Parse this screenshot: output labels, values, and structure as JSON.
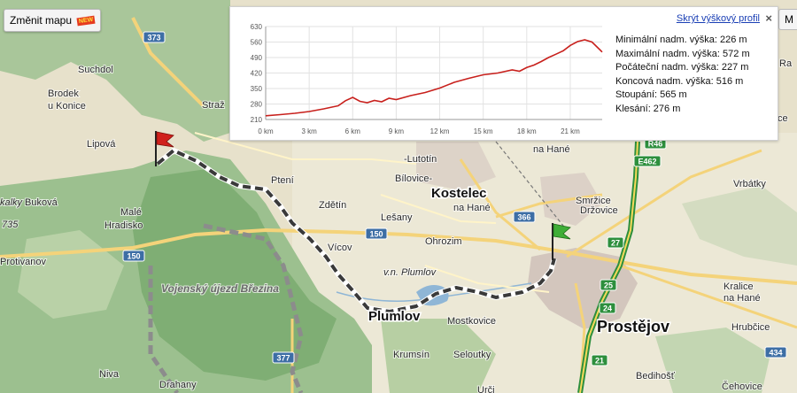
{
  "controls": {
    "change_map_label": "Změnit mapu",
    "change_map_badge": "NEW",
    "right_button_label": "M"
  },
  "profile": {
    "hide_label": "Skrýt výškový profil",
    "close_label": "×",
    "stats": [
      "Minimální nadm. výška: 226 m",
      "Maximální nadm. výška: 572 m",
      "Počáteční nadm. výška: 227 m",
      "Koncová nadm. výška: 516 m",
      "Stoupání: 565 m",
      "Klesání: 276 m"
    ]
  },
  "chart_data": {
    "type": "line",
    "title": "",
    "xlabel": "",
    "ylabel": "",
    "x_ticks": [
      "0 km",
      "3 km",
      "6 km",
      "9 km",
      "12 km",
      "15 km",
      "18 km",
      "21 km"
    ],
    "y_ticks": [
      210,
      280,
      350,
      420,
      490,
      560,
      630
    ],
    "xlim": [
      0,
      23.2
    ],
    "ylim": [
      210,
      630
    ],
    "grid": true,
    "color": "#c8201c",
    "series": [
      {
        "x": [
          0,
          1,
          2,
          3,
          4,
          5,
          5.5,
          6,
          6.5,
          7,
          7.5,
          8,
          8.5,
          9,
          10,
          11,
          12,
          13,
          14,
          15,
          16,
          17,
          17.5,
          18,
          18.5,
          19,
          19.5,
          20,
          20.5,
          21,
          21.5,
          22,
          22.5,
          23,
          23.2
        ],
        "values": [
          227,
          232,
          238,
          246,
          258,
          272,
          295,
          310,
          292,
          286,
          296,
          290,
          306,
          300,
          318,
          332,
          352,
          378,
          396,
          412,
          420,
          434,
          428,
          445,
          456,
          472,
          490,
          505,
          520,
          545,
          562,
          570,
          560,
          528,
          515
        ]
      }
    ]
  },
  "map": {
    "places": [
      {
        "name": "Suchdol"
      },
      {
        "name": "Brodek"
      },
      {
        "name": "u Konice"
      },
      {
        "name": "Straž"
      },
      {
        "name": "Lipová"
      },
      {
        "name": "Buková"
      },
      {
        "name": "Malé"
      },
      {
        "name": "Hradisko"
      },
      {
        "name": "Protivanov"
      },
      {
        "name": "Ptení"
      },
      {
        "name": "Zdětín"
      },
      {
        "name": "Lešany"
      },
      {
        "name": "Ohrozim"
      },
      {
        "name": "Vícov"
      },
      {
        "name": "Bílovice-"
      },
      {
        "name": "-Lutotín"
      },
      {
        "name": "Kostelec"
      },
      {
        "name": "na Hané"
      },
      {
        "name": "Smržice"
      },
      {
        "name": "Držovice"
      },
      {
        "name": "Vrbátky"
      },
      {
        "name": "Kralice"
      },
      {
        "name": "na Hané"
      },
      {
        "name": "Hrubčice"
      },
      {
        "name": "Plumlov"
      },
      {
        "name": "Mostkovice"
      },
      {
        "name": "Krumsín"
      },
      {
        "name": "Seloutky"
      },
      {
        "name": "Prostějov"
      },
      {
        "name": "Niva"
      },
      {
        "name": "Drahany"
      },
      {
        "name": "Bedihošť"
      },
      {
        "name": "Čehovice"
      },
      {
        "name": "Vojenský újezd Březina"
      },
      {
        "name": "v.n. Plumlov"
      },
      {
        "name": "kalky"
      },
      {
        "name": "735"
      },
      {
        "name": "na Hané"
      },
      {
        "name": "Urči"
      },
      {
        "name": "ce"
      },
      {
        "name": "Ra"
      }
    ],
    "roads": [
      "373",
      "150",
      "150",
      "366",
      "377",
      "27",
      "25",
      "24",
      "21",
      "434",
      "E462",
      "R46"
    ]
  }
}
